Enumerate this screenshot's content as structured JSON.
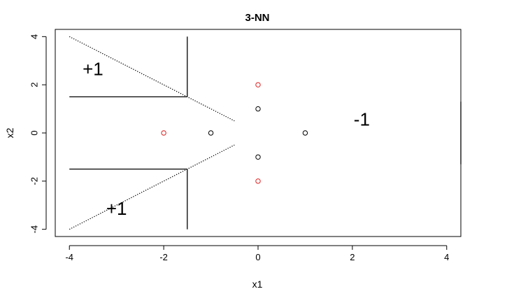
{
  "chart_data": {
    "type": "scatter",
    "title": "3-NN",
    "xlabel": "x1",
    "ylabel": "x2",
    "xlim": [
      -4.3,
      4.3
    ],
    "ylim": [
      -4.3,
      4.3
    ],
    "xticks": [
      -4,
      -2,
      0,
      2,
      4
    ],
    "yticks": [
      -4,
      -2,
      0,
      2,
      4
    ],
    "grid": false,
    "series": [
      {
        "color": "#e02020",
        "points": [
          [
            -2,
            0
          ],
          [
            0,
            2
          ],
          [
            0,
            -2
          ]
        ]
      },
      {
        "color": "#000000",
        "points": [
          [
            -1,
            0
          ],
          [
            0,
            1
          ],
          [
            0,
            -1
          ],
          [
            1,
            0
          ]
        ]
      }
    ],
    "boundaries": [
      {
        "style": "solid",
        "points": [
          [
            -1.5,
            4
          ],
          [
            -1.5,
            1.5
          ]
        ]
      },
      {
        "style": "solid",
        "points": [
          [
            -1.5,
            1.5
          ],
          [
            -4,
            1.5
          ]
        ]
      },
      {
        "style": "dotted",
        "points": [
          [
            -4,
            4
          ],
          [
            -1.5,
            1.5
          ],
          [
            -1,
            1
          ],
          [
            -0.5,
            0.5
          ]
        ]
      },
      {
        "style": "solid",
        "points": [
          [
            -1.5,
            -4
          ],
          [
            -1.5,
            -1.5
          ]
        ]
      },
      {
        "style": "solid",
        "points": [
          [
            -1.5,
            -1.5
          ],
          [
            -4,
            -1.5
          ]
        ]
      },
      {
        "style": "dotted",
        "points": [
          [
            -4,
            -4
          ],
          [
            -1.5,
            -1.5
          ],
          [
            -1,
            -1
          ],
          [
            -0.5,
            -0.5
          ]
        ]
      },
      {
        "style": "solid",
        "points": [
          [
            4.3,
            1.3
          ],
          [
            4.3,
            -1.3
          ]
        ]
      }
    ],
    "annotations": [
      {
        "text": "+1",
        "x": -3.5,
        "y": 2.6
      },
      {
        "text": "+1",
        "x": -3.0,
        "y": -3.2
      },
      {
        "text": "-1",
        "x": 2.2,
        "y": 0.5
      }
    ]
  }
}
